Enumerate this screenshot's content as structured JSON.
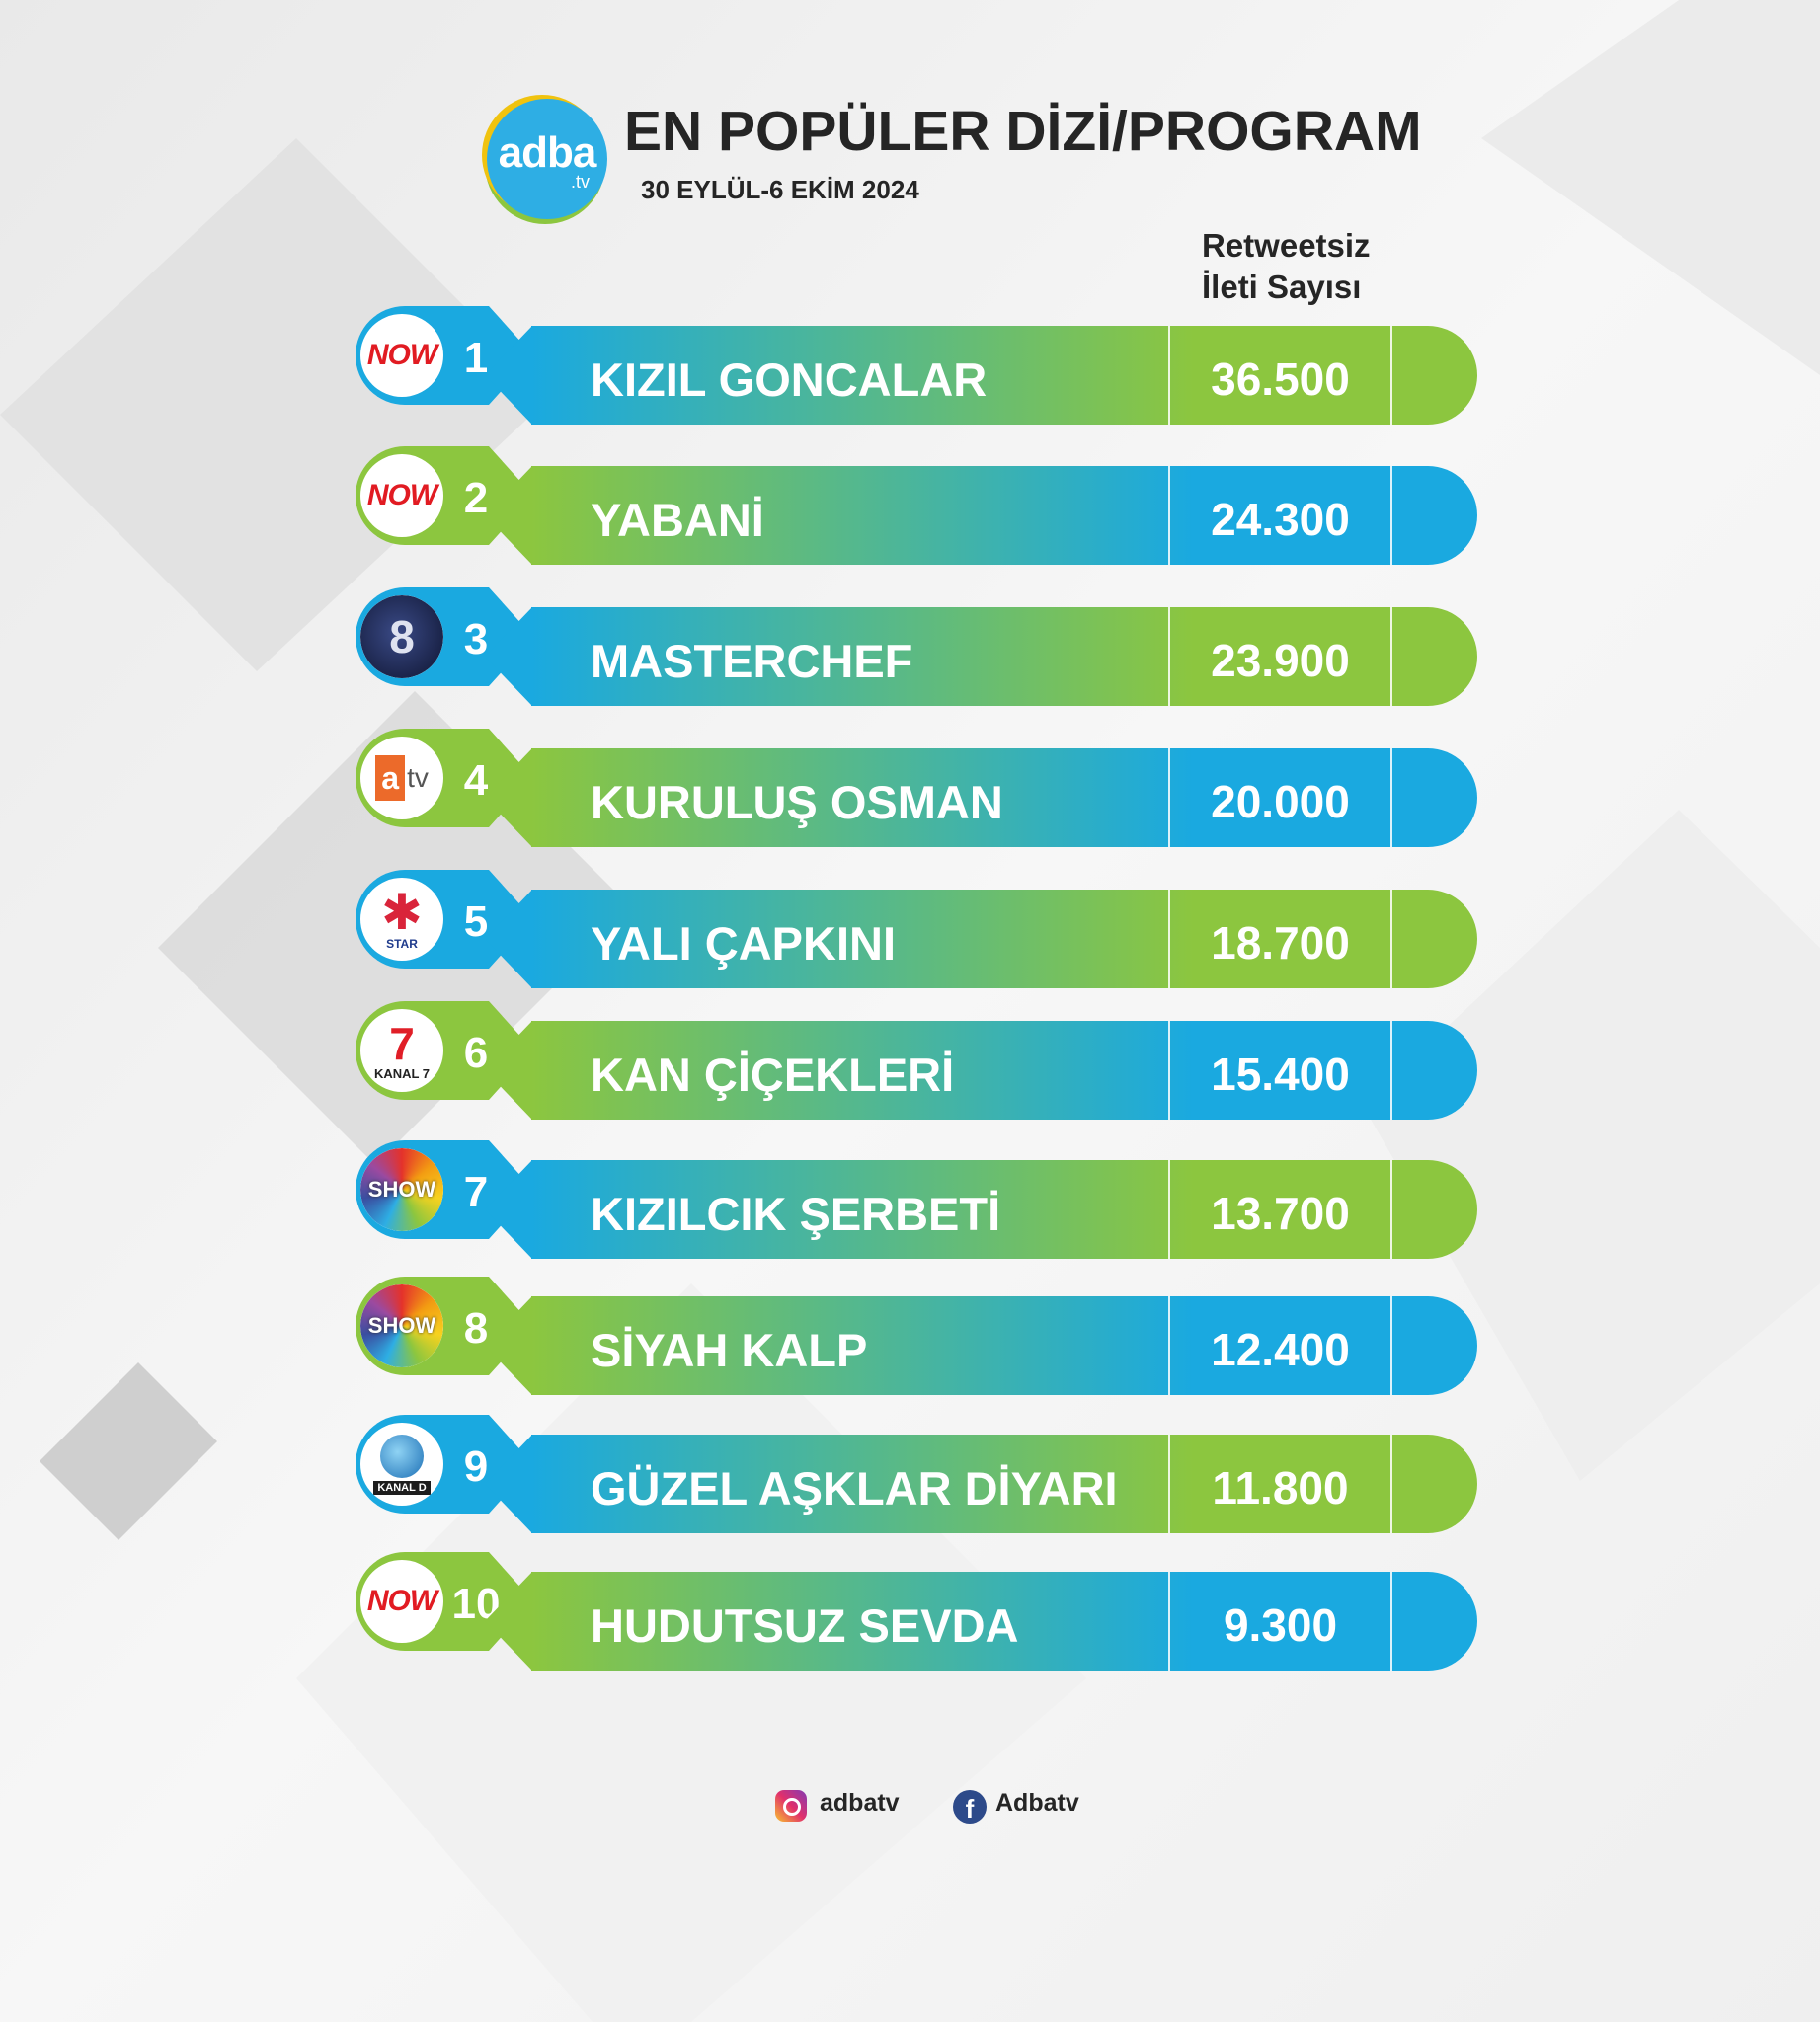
{
  "brand": {
    "logo_text": "adba",
    "logo_suffix": ".tv"
  },
  "header": {
    "title": "EN POPÜLER DİZİ/PROGRAM",
    "date_range": "30 EYLÜL-6 EKİM 2024",
    "column_label_line1": "Retweetsiz",
    "column_label_line2": "İleti Sayısı"
  },
  "colors": {
    "blue": "#1aa9e0",
    "green": "#8cc63f"
  },
  "rankings": [
    {
      "rank": "1",
      "channel": "NOW",
      "channel_logo": "now-logo",
      "show": "KIZIL GONCALAR",
      "count": "36.500",
      "theme": "blue"
    },
    {
      "rank": "2",
      "channel": "NOW",
      "channel_logo": "now-logo",
      "show": "YABANİ",
      "count": "24.300",
      "theme": "green"
    },
    {
      "rank": "3",
      "channel": "TV8",
      "channel_logo": "tv8-logo",
      "show": "MASTERCHEF",
      "count": "23.900",
      "theme": "blue"
    },
    {
      "rank": "4",
      "channel": "atv",
      "channel_logo": "atv-logo",
      "show": "KURULUŞ OSMAN",
      "count": "20.000",
      "theme": "green"
    },
    {
      "rank": "5",
      "channel": "STAR",
      "channel_logo": "star-logo",
      "show": "YALI ÇAPKINI",
      "count": "18.700",
      "theme": "blue"
    },
    {
      "rank": "6",
      "channel": "KANAL 7",
      "channel_logo": "kanal7-logo",
      "show": "KAN ÇİÇEKLERİ",
      "count": "15.400",
      "theme": "green"
    },
    {
      "rank": "7",
      "channel": "SHOW",
      "channel_logo": "show-logo",
      "show": "KIZILCIK ŞERBETİ",
      "count": "13.700",
      "theme": "blue"
    },
    {
      "rank": "8",
      "channel": "SHOW",
      "channel_logo": "show-logo",
      "show": "SİYAH KALP",
      "count": "12.400",
      "theme": "green"
    },
    {
      "rank": "9",
      "channel": "KANAL D",
      "channel_logo": "kanald-logo",
      "show": "GÜZEL AŞKLAR DİYARI",
      "count": "11.800",
      "theme": "blue"
    },
    {
      "rank": "10",
      "channel": "NOW",
      "channel_logo": "now-logo",
      "show": "HUDUTSUZ SEVDA",
      "count": "9.300",
      "theme": "green"
    }
  ],
  "footer": {
    "instagram_icon": "instagram-icon",
    "instagram_handle": "adbatv",
    "facebook_icon": "facebook-icon",
    "facebook_handle": "Adbatv"
  }
}
